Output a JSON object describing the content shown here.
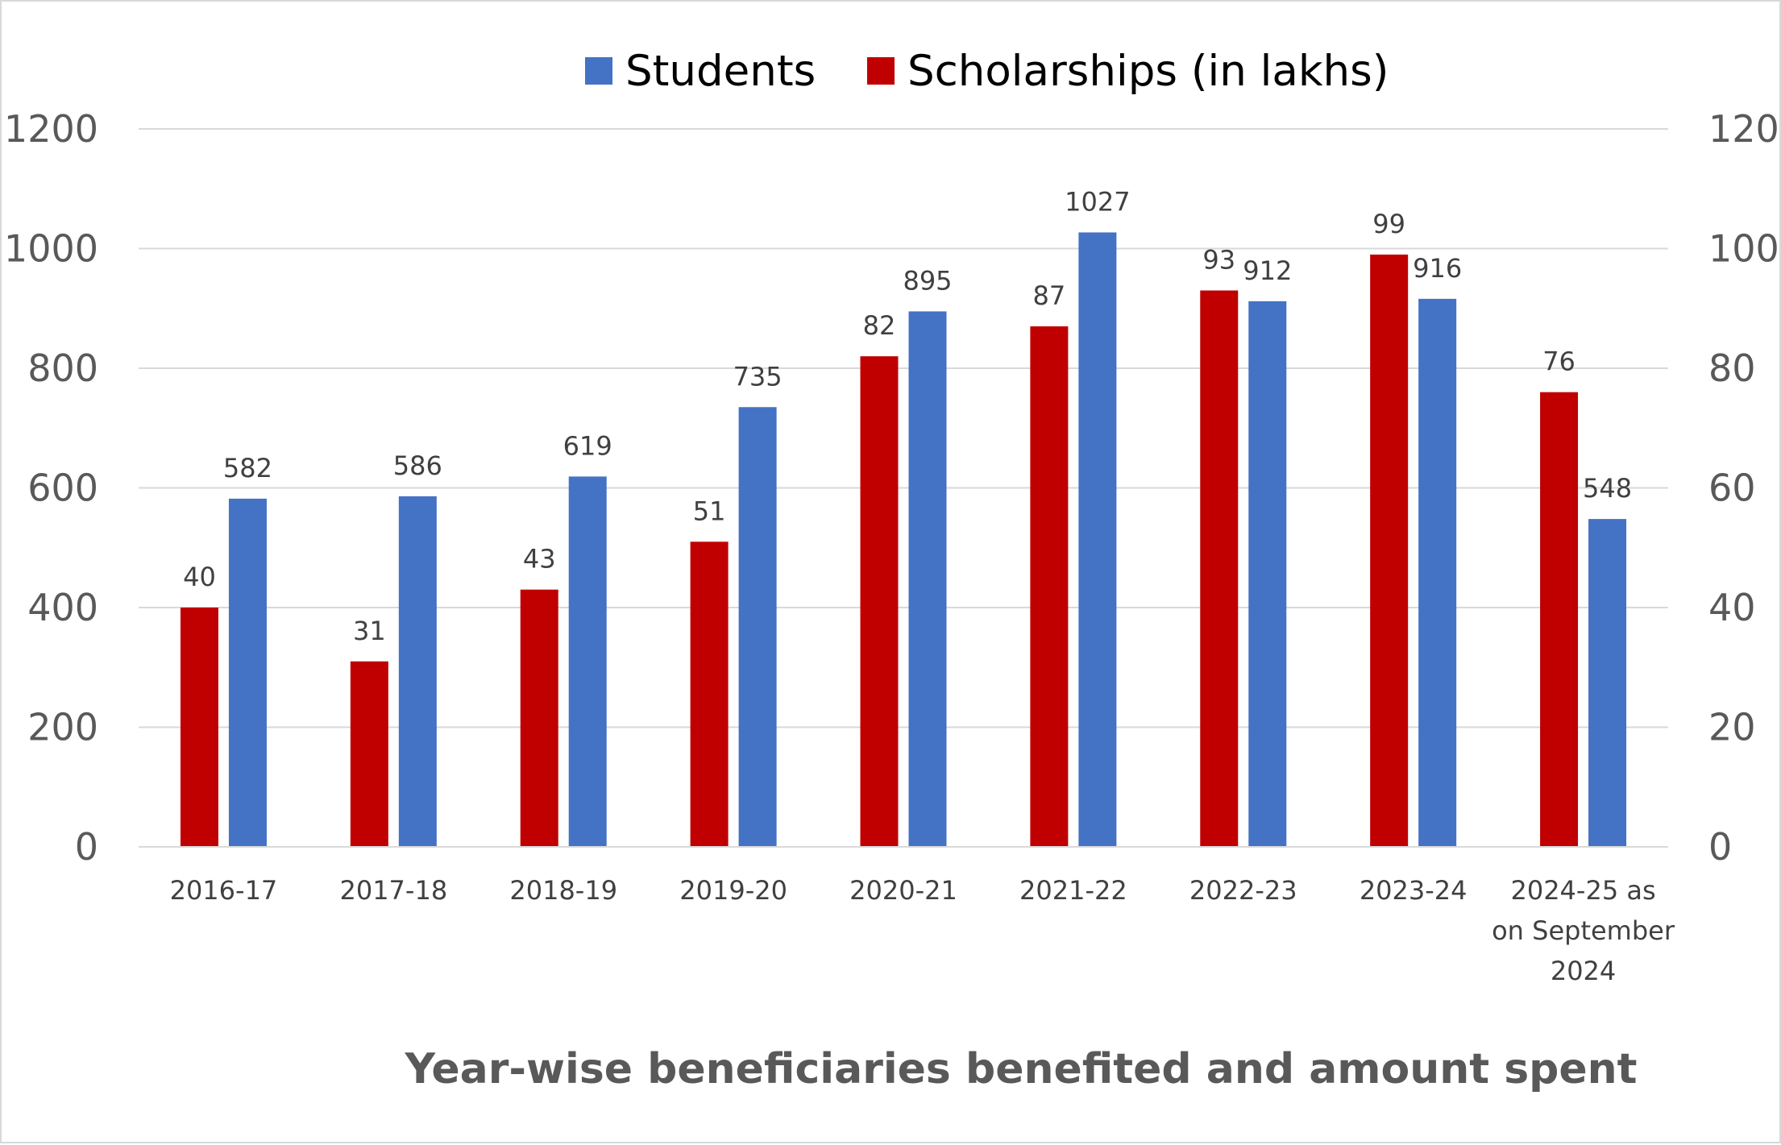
{
  "chart_data": {
    "type": "bar",
    "title": "Year-wise beneficiaries benefited and amount spent",
    "categories": [
      "2016-17",
      "2017-18",
      "2018-19",
      "2019-20",
      "2020-21",
      "2021-22",
      "2022-23",
      "2023-24",
      "2024-25 as on September 2024"
    ],
    "series": [
      {
        "name": "Scholarships (in lakhs)",
        "axis": "right",
        "color": "#c00000",
        "values": [
          40,
          31,
          43,
          51,
          82,
          87,
          93,
          99,
          76
        ]
      },
      {
        "name": "Students",
        "axis": "left",
        "color": "#4472c4",
        "values": [
          582,
          586,
          619,
          735,
          895,
          1027,
          912,
          916,
          548
        ]
      }
    ],
    "left_axis": {
      "ylim": [
        0,
        1200
      ],
      "ticks": [
        0,
        200,
        400,
        600,
        800,
        1000,
        1200
      ]
    },
    "right_axis": {
      "ylim": [
        0,
        120
      ],
      "ticks": [
        0,
        20,
        40,
        60,
        80,
        100,
        120
      ]
    },
    "legend": {
      "position": "top",
      "order": [
        "Students",
        "Scholarships (in lakhs)"
      ]
    },
    "grid": true,
    "gridline_color": "#d9d9d9"
  }
}
